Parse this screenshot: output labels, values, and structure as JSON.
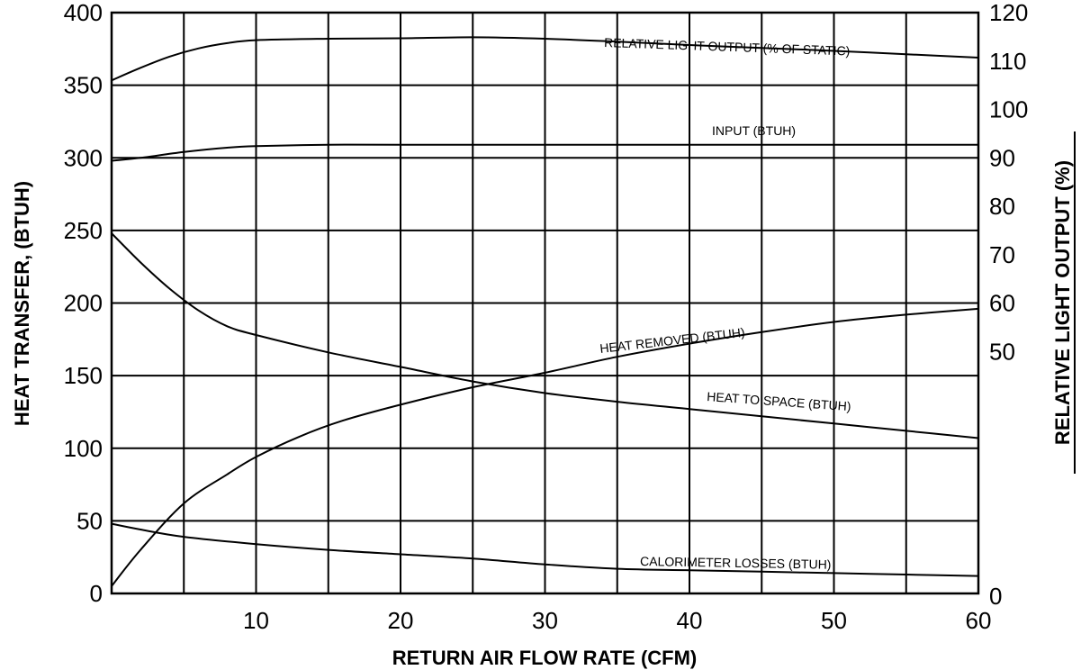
{
  "chart_data": {
    "type": "line",
    "title": "",
    "xlabel": "RETURN AIR FLOW RATE (CFM)",
    "ylabel": "HEAT TRANSFER, (BTUH)",
    "y2label": "RELATIVE LIGHT OUTPUT (%)",
    "xlim": [
      0,
      60
    ],
    "ylim": [
      0,
      400
    ],
    "y2lim": [
      0,
      120
    ],
    "x_ticks": [
      10,
      20,
      30,
      40,
      50,
      60
    ],
    "x_tick_labels": [
      "10",
      "20",
      "30",
      "40",
      "50",
      "60"
    ],
    "y_ticks": [
      0,
      50,
      100,
      150,
      200,
      250,
      300,
      350,
      400
    ],
    "y_tick_labels": [
      "0",
      "50",
      "100",
      "150",
      "200",
      "250",
      "300",
      "350",
      "400"
    ],
    "y2_ticks": [
      0,
      50,
      60,
      70,
      80,
      90,
      100,
      110,
      120
    ],
    "y2_tick_labels": [
      "0",
      "50",
      "60",
      "70",
      "80",
      "90",
      "100",
      "110",
      "120"
    ],
    "grid": true,
    "legend": "none",
    "series": [
      {
        "name": "RELATIVE LIGHT OUTPUT (% OF STATIC)",
        "axis": "y2",
        "x": [
          0,
          2,
          4,
          6,
          8,
          10,
          15,
          20,
          25,
          30,
          35,
          40,
          45,
          50,
          55,
          60
        ],
        "values": [
          106,
          108.6,
          110.9,
          112.6,
          113.7,
          114.3,
          114.6,
          114.7,
          114.9,
          114.6,
          114.0,
          113.3,
          112.7,
          112.1,
          111.4,
          110.7
        ]
      },
      {
        "name": "INPUT (BTUH)",
        "axis": "y",
        "x": [
          0,
          2,
          5,
          8,
          10,
          15,
          20,
          30,
          40,
          50,
          60
        ],
        "values": [
          298,
          300,
          304,
          307,
          308,
          309,
          309,
          309,
          309,
          309,
          309
        ]
      },
      {
        "name": "HEAT REMOVED (BTUH)",
        "axis": "y",
        "x": [
          0,
          2,
          5,
          8,
          10,
          13,
          16,
          20,
          25,
          30,
          35,
          40,
          45,
          50,
          55,
          60
        ],
        "values": [
          5,
          30,
          62,
          82,
          94,
          108,
          119,
          130,
          142,
          152,
          163,
          172,
          180,
          187,
          192,
          196
        ]
      },
      {
        "name": "HEAT TO SPACE (BTUH)",
        "axis": "y",
        "x": [
          0,
          2,
          4,
          6,
          8,
          10,
          15,
          20,
          25,
          30,
          35,
          40,
          45,
          50,
          55,
          60
        ],
        "values": [
          248,
          228,
          210,
          195,
          184,
          178,
          166,
          156,
          146,
          138,
          132,
          127,
          122,
          117,
          112,
          107
        ]
      },
      {
        "name": "CALORIMETER LOSSES (BTUH)",
        "axis": "y",
        "x": [
          0,
          2,
          5,
          10,
          15,
          20,
          25,
          30,
          35,
          40,
          45,
          50,
          55,
          60
        ],
        "values": [
          48,
          44,
          39,
          34,
          30,
          27,
          24,
          20,
          17,
          16,
          15,
          14,
          13,
          12
        ]
      }
    ]
  }
}
